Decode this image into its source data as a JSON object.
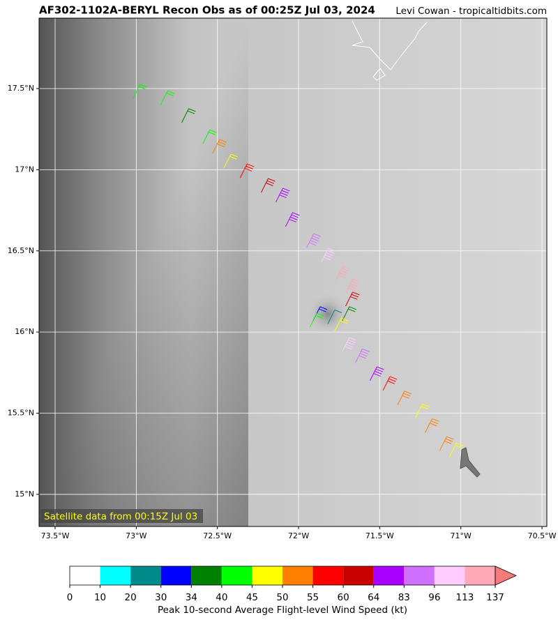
{
  "chart_data": {
    "type": "barbs",
    "title": "AF302-1102A-BERYL Recon Obs as of 00:25Z Jul 03, 2024",
    "credit": "Levi Cowan - tropicaltidbits.com",
    "annotation": "Satellite data from 00:15Z Jul 03",
    "xlim": [
      -73.599,
      -70.47
    ],
    "ylim": [
      14.802,
      17.934
    ],
    "xticks": [
      {
        "value": -73.5,
        "label": "73.5°W"
      },
      {
        "value": -73,
        "label": "73°W"
      },
      {
        "value": -72.5,
        "label": "72.5°W"
      },
      {
        "value": -72,
        "label": "72°W"
      },
      {
        "value": -71.5,
        "label": "71.5°W"
      },
      {
        "value": -71,
        "label": "71°W"
      },
      {
        "value": -70.5,
        "label": "70.5°W"
      }
    ],
    "yticks": [
      {
        "value": 15,
        "label": "15°N"
      },
      {
        "value": 15.5,
        "label": "15.5°N"
      },
      {
        "value": 16,
        "label": "16°N"
      },
      {
        "value": 16.5,
        "label": "16.5°N"
      },
      {
        "value": 17,
        "label": "17°N"
      },
      {
        "value": 17.5,
        "label": "17.5°N"
      }
    ],
    "grid": true,
    "observations": {
      "lon": [
        -73.02,
        -72.85,
        -72.72,
        -72.59,
        -72.53,
        -72.46,
        -72.36,
        -72.23,
        -72.14,
        -72.08,
        -71.95,
        -71.86,
        -71.77,
        -71.71,
        -71.71,
        -71.73,
        -71.82,
        -71.91,
        -71.93,
        -71.78,
        -71.73,
        -71.65,
        -71.56,
        -71.48,
        -71.39,
        -71.28,
        -71.22,
        -71.13,
        -71.07
      ],
      "lat": [
        17.44,
        17.4,
        17.29,
        17.16,
        17.1,
        17.01,
        16.95,
        16.86,
        16.8,
        16.65,
        16.52,
        16.43,
        16.32,
        16.24,
        16.16,
        16.07,
        16.05,
        16.07,
        16.03,
        16.0,
        15.88,
        15.81,
        15.7,
        15.64,
        15.55,
        15.47,
        15.38,
        15.27,
        15.23
      ],
      "speed": [
        40,
        42,
        36,
        43,
        52,
        47,
        57,
        62,
        70,
        75,
        90,
        100,
        120,
        115,
        62,
        36,
        22,
        32,
        42,
        48,
        100,
        88,
        72,
        58,
        52,
        47,
        53,
        51,
        46
      ]
    }
  },
  "colorbar": {
    "label": "Peak 10-second Average Flight-level Wind Speed (kt)",
    "bounds": [
      0,
      10,
      20,
      30,
      34,
      40,
      45,
      50,
      55,
      60,
      64,
      83,
      96,
      113,
      137
    ],
    "colors": [
      "#ffffff",
      "#00ffff",
      "#008b8b",
      "#0000ff",
      "#008000",
      "#00ff00",
      "#ffff00",
      "#ff7f00",
      "#ff0000",
      "#c80000",
      "#aa00ff",
      "#d070ff",
      "#ffccff",
      "#ffa8b8"
    ],
    "extend_color": "#f87a7a"
  }
}
